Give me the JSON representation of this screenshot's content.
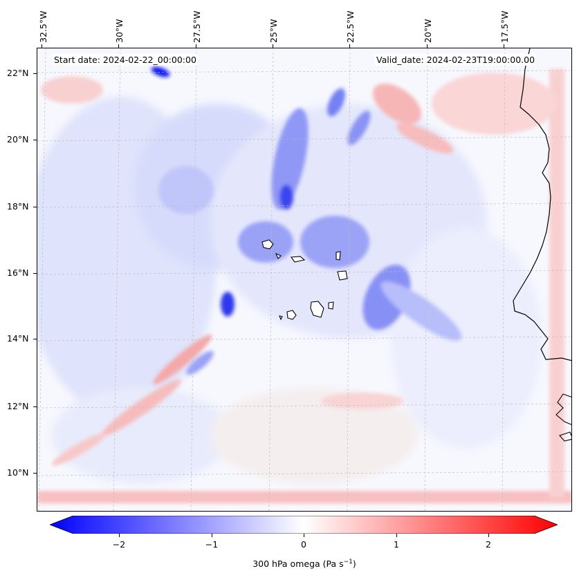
{
  "header": {
    "start": "Start date: 2024-02-22_00:00:00",
    "valid": "Valid_date: 2024-02-23T19:00:00.00"
  },
  "axes": {
    "lon_labels": [
      "32.5°W",
      "30°W",
      "27.5°W",
      "25°W",
      "22.5°W",
      "20°W",
      "17.5°W"
    ],
    "lat_labels": [
      "22°N",
      "20°N",
      "18°N",
      "16°N",
      "14°N",
      "12°N",
      "10°N"
    ]
  },
  "colorbar": {
    "ticks": [
      "−2",
      "−1",
      "0",
      "1",
      "2"
    ],
    "title_main": "300 hPa omega (Pa s",
    "title_sup": "−1",
    "title_end": ")",
    "min": -2.75,
    "max": 2.75,
    "colors": {
      "neg": "#0000ff",
      "mid": "#ffffff",
      "pos": "#ff0000"
    }
  },
  "legend_text": {}
}
